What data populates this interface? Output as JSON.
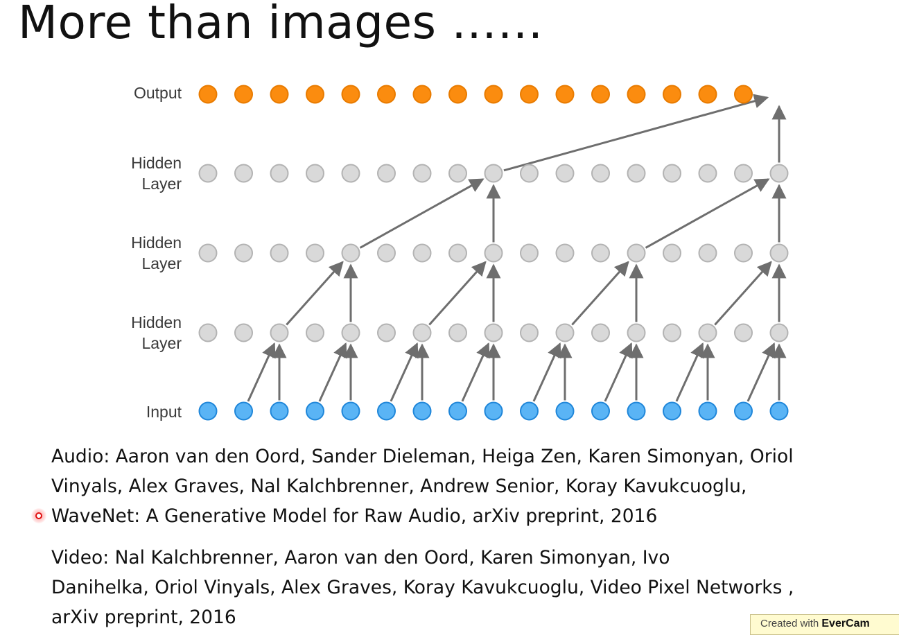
{
  "title": "More than images ……",
  "diagram": {
    "labels": {
      "output": "Output",
      "hidden_3": [
        "Hidden",
        "Layer"
      ],
      "hidden_2": [
        "Hidden",
        "Layer"
      ],
      "hidden_1": [
        "Hidden",
        "Layer"
      ],
      "input": "Input"
    },
    "nodes_per_layer": 17,
    "visible_output_nodes": 16,
    "colors": {
      "output": "#fb8c0f",
      "output_stroke": "#e87b00",
      "hidden": "#d9d9d9",
      "hidden_stroke": "#b3b3b3",
      "input": "#5ab4f5",
      "input_stroke": "#1f86d9",
      "arrow": "#6e6e6e"
    }
  },
  "references": {
    "audio": [
      "Audio: Aaron van den Oord, Sander Dieleman, Heiga Zen, Karen Simonyan, Oriol",
      "Vinyals, Alex Graves, Nal Kalchbrenner, Andrew Senior, Koray Kavukcuoglu,",
      "WaveNet: A Generative Model for Raw Audio, arXiv preprint, 2016"
    ],
    "video": [
      "Video: Nal Kalchbrenner, Aaron van den Oord, Karen Simonyan, Ivo",
      "Danihelka, Oriol Vinyals, Alex Graves, Koray Kavukcuoglu, Video Pixel Networks ,",
      "arXiv preprint, 2016"
    ]
  },
  "watermark": {
    "prefix": "Created with ",
    "brand": "EverCam"
  }
}
